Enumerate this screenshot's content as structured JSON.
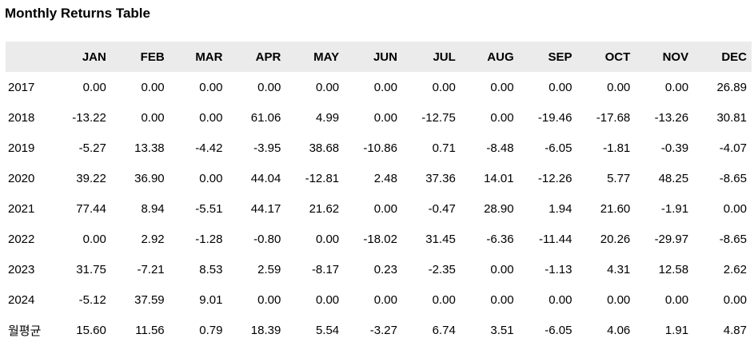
{
  "title": "Monthly Returns Table",
  "chart_data": {
    "type": "table",
    "title": "Monthly Returns Table",
    "row_label_header": "",
    "columns": [
      "JAN",
      "FEB",
      "MAR",
      "APR",
      "MAY",
      "JUN",
      "JUL",
      "AUG",
      "SEP",
      "OCT",
      "NOV",
      "DEC"
    ],
    "rows": [
      {
        "label": "2017",
        "values": [
          0.0,
          0.0,
          0.0,
          0.0,
          0.0,
          0.0,
          0.0,
          0.0,
          0.0,
          0.0,
          0.0,
          26.89
        ]
      },
      {
        "label": "2018",
        "values": [
          -13.22,
          0.0,
          0.0,
          61.06,
          4.99,
          0.0,
          -12.75,
          0.0,
          -19.46,
          -17.68,
          -13.26,
          30.81
        ]
      },
      {
        "label": "2019",
        "values": [
          -5.27,
          13.38,
          -4.42,
          -3.95,
          38.68,
          -10.86,
          0.71,
          -8.48,
          -6.05,
          -1.81,
          -0.39,
          -4.07
        ]
      },
      {
        "label": "2020",
        "values": [
          39.22,
          36.9,
          0.0,
          44.04,
          -12.81,
          2.48,
          37.36,
          14.01,
          -12.26,
          5.77,
          48.25,
          -8.65
        ]
      },
      {
        "label": "2021",
        "values": [
          77.44,
          8.94,
          -5.51,
          44.17,
          21.62,
          0.0,
          -0.47,
          28.9,
          1.94,
          21.6,
          -1.91,
          0.0
        ]
      },
      {
        "label": "2022",
        "values": [
          0.0,
          2.92,
          -1.28,
          -0.8,
          0.0,
          -18.02,
          31.45,
          -6.36,
          -11.44,
          20.26,
          -29.97,
          -8.65
        ]
      },
      {
        "label": "2023",
        "values": [
          31.75,
          -7.21,
          8.53,
          2.59,
          -8.17,
          0.23,
          -2.35,
          0.0,
          -1.13,
          4.31,
          12.58,
          2.62
        ]
      },
      {
        "label": "2024",
        "values": [
          -5.12,
          37.59,
          9.01,
          0.0,
          0.0,
          0.0,
          0.0,
          0.0,
          0.0,
          0.0,
          0.0,
          0.0
        ]
      },
      {
        "label": "월평균",
        "values": [
          15.6,
          11.56,
          0.79,
          18.39,
          5.54,
          -3.27,
          6.74,
          3.51,
          -6.05,
          4.06,
          1.91,
          4.87
        ]
      }
    ],
    "value_format": "2dp",
    "layout": {
      "header_bg": "#ebebeb",
      "text_color": "#000000",
      "background": "#ffffff",
      "grid": false,
      "value_align": "right"
    }
  }
}
